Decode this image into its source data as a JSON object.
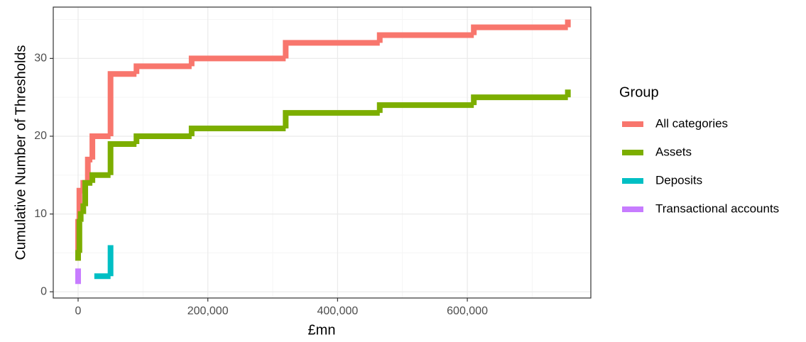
{
  "chart_data": {
    "type": "step",
    "x_label": "£mn",
    "y_label": "Cumulative Number of Thresholds",
    "legend_title": "Group",
    "legend_position": "right",
    "grid": true,
    "xlim": [
      -38300,
      790400
    ],
    "ylim": [
      -0.8,
      36.6
    ],
    "xticks": [
      0,
      {
        "value": 200000,
        "label": "200,000"
      },
      {
        "value": 400000,
        "label": "400,000"
      },
      {
        "value": 600000,
        "label": "600,000"
      }
    ],
    "yticks": [
      0,
      10,
      20,
      30
    ],
    "series": [
      {
        "name": "All categories",
        "color": "#F8766D",
        "x": [
          0,
          0,
          0,
          2000,
          8000,
          15000,
          22000,
          50000,
          90000,
          175000,
          320000,
          465000,
          610000,
          755000
        ],
        "values": [
          4,
          8,
          9,
          13,
          14,
          17,
          20,
          28,
          29,
          30,
          32,
          33,
          34,
          35
        ]
      },
      {
        "name": "Assets",
        "color": "#7CAE00",
        "x": [
          0,
          0,
          2000,
          4000,
          8000,
          11000,
          22000,
          50000,
          90000,
          175000,
          320000,
          465000,
          610000,
          755000
        ],
        "values": [
          4,
          5,
          9,
          10,
          11,
          14,
          15,
          19,
          20,
          21,
          23,
          24,
          25,
          26
        ]
      },
      {
        "name": "Deposits",
        "color": "#00BFC4",
        "x": [
          25000,
          50000
        ],
        "values": [
          2,
          6
        ]
      },
      {
        "name": "Transactional accounts",
        "color": "#C77CFF",
        "x": [
          0,
          0
        ],
        "values": [
          1,
          3
        ]
      }
    ]
  }
}
